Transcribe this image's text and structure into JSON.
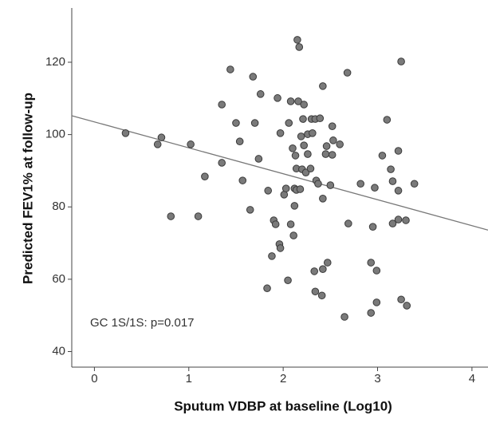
{
  "chart_data": {
    "type": "scatter",
    "x_label": "Sputum VDBP at baseline (Log10)",
    "y_label": "Predicted FEV1% at follow-up",
    "annotation": "GC 1S/1S: p=0.017",
    "color": "#7a7a7a",
    "line_color": "#777777",
    "xlim": [
      -0.24,
      4.17
    ],
    "ylim": [
      35.7,
      135
    ],
    "xticks": [
      0,
      1,
      2,
      3,
      4
    ],
    "yticks": [
      40,
      60,
      80,
      100,
      120
    ],
    "fit": {
      "intercept": 103.5,
      "slope": -7.17
    },
    "x": [
      0.33,
      0.67,
      0.71,
      0.81,
      1.02,
      1.1,
      1.17,
      1.35,
      1.35,
      1.44,
      1.5,
      1.54,
      1.57,
      1.65,
      1.68,
      1.7,
      1.76,
      1.74,
      1.83,
      1.84,
      1.88,
      1.9,
      1.92,
      1.94,
      1.96,
      1.97,
      1.97,
      2.01,
      2.03,
      2.05,
      2.06,
      2.08,
      2.08,
      2.1,
      2.11,
      2.12,
      2.12,
      2.13,
      2.14,
      2.14,
      2.15,
      2.17,
      2.16,
      2.18,
      2.19,
      2.2,
      2.21,
      2.22,
      2.22,
      2.24,
      2.26,
      2.26,
      2.29,
      2.3,
      2.31,
      2.33,
      2.34,
      2.34,
      2.35,
      2.37,
      2.39,
      2.41,
      2.42,
      2.42,
      2.42,
      2.45,
      2.46,
      2.47,
      2.5,
      2.52,
      2.52,
      2.53,
      2.6,
      2.65,
      2.68,
      2.69,
      2.82,
      2.93,
      2.93,
      2.95,
      2.97,
      2.99,
      2.99,
      3.05,
      3.1,
      3.14,
      3.16,
      3.16,
      3.22,
      3.22,
      3.22,
      3.25,
      3.25,
      3.3,
      3.31,
      3.39
    ],
    "values": [
      100.4,
      97.3,
      99.2,
      77.4,
      97.3,
      77.4,
      88.4,
      92.2,
      108.3,
      118.0,
      103.2,
      98.1,
      87.3,
      79.2,
      116.0,
      103.2,
      111.2,
      93.3,
      57.5,
      84.5,
      66.4,
      76.3,
      75.2,
      110.1,
      69.7,
      68.6,
      100.4,
      83.4,
      85.1,
      59.7,
      103.2,
      109.2,
      75.2,
      96.2,
      72.1,
      80.3,
      85.1,
      94.2,
      90.6,
      84.7,
      126.2,
      124.2,
      109.2,
      84.9,
      99.5,
      90.4,
      104.3,
      108.3,
      97.0,
      89.5,
      94.6,
      100.1,
      90.6,
      104.3,
      100.4,
      62.2,
      104.3,
      56.6,
      87.3,
      86.4,
      104.5,
      55.5,
      113.4,
      82.3,
      62.8,
      94.6,
      96.8,
      64.6,
      86.0,
      94.4,
      102.3,
      98.4,
      97.3,
      49.6,
      117.1,
      75.4,
      86.4,
      64.6,
      50.7,
      74.5,
      85.3,
      62.4,
      53.6,
      94.2,
      104.1,
      90.4,
      87.1,
      75.4,
      76.5,
      95.5,
      84.5,
      120.2,
      54.4,
      76.3,
      52.7,
      86.4
    ]
  }
}
